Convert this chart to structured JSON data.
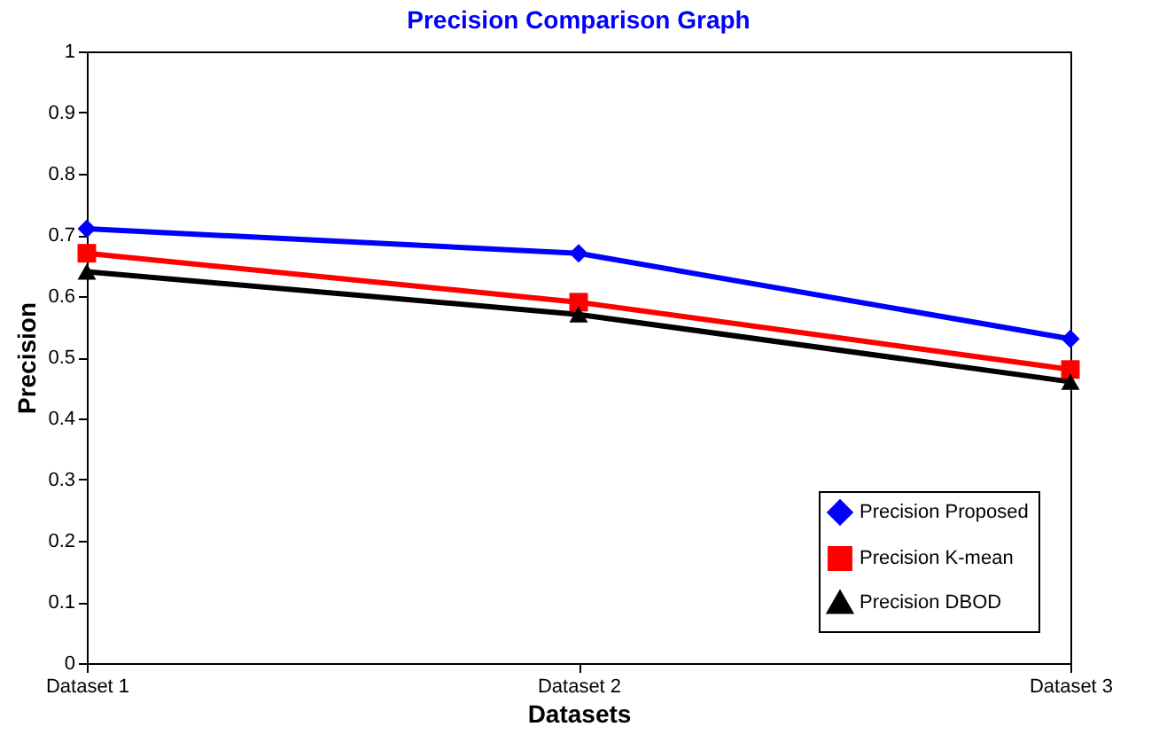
{
  "chart_data": {
    "type": "line",
    "title": "Precision Comparison Graph",
    "xlabel": "Datasets",
    "ylabel": "Precision",
    "categories": [
      "Dataset 1",
      "Dataset 2",
      "Dataset 3"
    ],
    "series": [
      {
        "name": "Precision Proposed",
        "color": "#0000ff",
        "marker": "diamond",
        "values": [
          0.71,
          0.67,
          0.53
        ]
      },
      {
        "name": "Precision K-mean",
        "color": "#ff0000",
        "marker": "square",
        "values": [
          0.67,
          0.59,
          0.48
        ]
      },
      {
        "name": "Precision DBOD",
        "color": "#000000",
        "marker": "triangle",
        "values": [
          0.64,
          0.57,
          0.46
        ]
      }
    ],
    "ylim": [
      0,
      1
    ],
    "yticks": [
      0,
      0.1,
      0.2,
      0.3,
      0.4,
      0.5,
      0.6,
      0.7,
      0.8,
      0.9,
      1
    ],
    "grid": false,
    "legend": "bottom right",
    "line_style": "solid"
  }
}
